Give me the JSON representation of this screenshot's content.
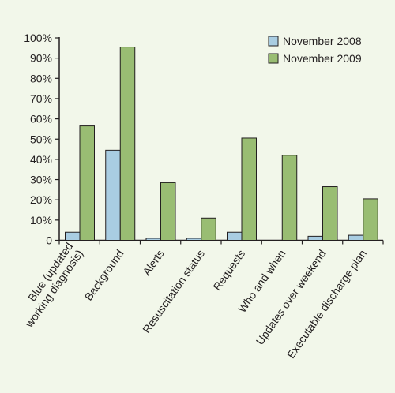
{
  "colors": {
    "background": "#f2f7ea",
    "axis": "#231f20",
    "series_2008": "#a9cde2",
    "series_2009": "#99bd73"
  },
  "chart_data": {
    "type": "bar",
    "categories": [
      [
        "Blue (updated",
        "working diagnosis)"
      ],
      [
        "Background"
      ],
      [
        "Alerts"
      ],
      [
        "Resuscitation status"
      ],
      [
        "Requests"
      ],
      [
        "Who and when"
      ],
      [
        "Updates over weekend"
      ],
      [
        "Executable discharge plan"
      ]
    ],
    "series": [
      {
        "name": "November 2008",
        "values": [
          4,
          44.5,
          1,
          1,
          4,
          0,
          2,
          2.5
        ]
      },
      {
        "name": "November 2009",
        "values": [
          56.5,
          95.5,
          28.5,
          11,
          50.5,
          42,
          26.5,
          20.5
        ]
      }
    ],
    "yticks": [
      "0",
      "10%",
      "20%",
      "30%",
      "40%",
      "50%",
      "60%",
      "70%",
      "80%",
      "90%",
      "100%"
    ],
    "ylim": [
      0,
      100
    ],
    "legend_position": "top-right",
    "grid": false,
    "title": "",
    "xlabel": "",
    "ylabel": ""
  }
}
